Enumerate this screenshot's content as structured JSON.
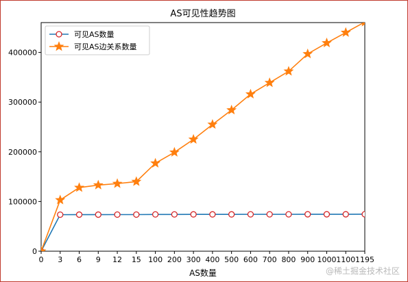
{
  "chart_data": {
    "type": "line",
    "title": "AS可见性趋势图",
    "xlabel": "AS数量",
    "ylabel": "",
    "categories": [
      "0",
      "3",
      "6",
      "9",
      "12",
      "15",
      "100",
      "200",
      "300",
      "400",
      "500",
      "600",
      "700",
      "800",
      "900",
      "1000",
      "1100",
      "1195"
    ],
    "ylim": [
      0,
      460000
    ],
    "yticks": [
      0,
      100000,
      200000,
      300000,
      400000
    ],
    "grid": false,
    "legend_position": "top-left",
    "series": [
      {
        "name": "可见AS数量",
        "marker": "circle-open",
        "line_color": "#1f77b4",
        "marker_color": "#d62728",
        "values": [
          0,
          73500,
          73600,
          73600,
          73700,
          73700,
          74000,
          74000,
          74100,
          74100,
          74100,
          74200,
          74200,
          74200,
          74300,
          74300,
          74300,
          74400
        ]
      },
      {
        "name": "可见AS边关系数量",
        "marker": "star",
        "line_color": "#ff7f0e",
        "marker_color": "#ff7f0e",
        "values": [
          0,
          103000,
          128000,
          133000,
          136000,
          140000,
          177000,
          199000,
          225000,
          255000,
          284000,
          316000,
          339000,
          362000,
          397000,
          419000,
          440000,
          461000
        ]
      }
    ]
  },
  "watermark": "@稀土掘金技术社区"
}
